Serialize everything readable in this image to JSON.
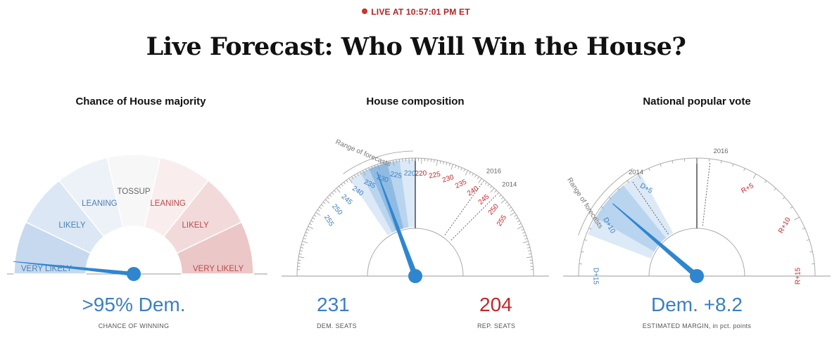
{
  "header": {
    "live_label": "LIVE AT 10:57:01 PM ET",
    "title": "Live Forecast: Who Will Win the House?"
  },
  "colors": {
    "dem": "#3a88cc",
    "rep": "#c0282b",
    "needle": "#2f86cf",
    "live_red": "#c8362b"
  },
  "chart_data": [
    {
      "type": "gauge",
      "title": "Chance of House majority",
      "segments": [
        {
          "label": "VERY LIKELY",
          "party": "dem",
          "color": "#c6d9ef"
        },
        {
          "label": "LIKELY",
          "party": "dem",
          "color": "#dbe7f4"
        },
        {
          "label": "LEANING",
          "party": "dem",
          "color": "#edf2f9"
        },
        {
          "label": "TOSSUP",
          "party": "none",
          "color": "#f7f7f7"
        },
        {
          "label": "LEANING",
          "party": "rep",
          "color": "#f9eded"
        },
        {
          "label": "LIKELY",
          "party": "rep",
          "color": "#f3dada"
        },
        {
          "label": "VERY LIKELY",
          "party": "rep",
          "color": "#ecc7c7"
        }
      ],
      "needle_dem_probability": 0.97,
      "value_text": ">95% Dem.",
      "caption": "CHANCE OF WINNING"
    },
    {
      "type": "gauge",
      "title": "House composition",
      "range_label": "Range of forecasts",
      "dem_ticks": [
        "220",
        "225",
        "230",
        "235",
        "240",
        "245",
        "250",
        "255"
      ],
      "rep_ticks": [
        "220",
        "225",
        "230",
        "235",
        "240",
        "245",
        "250",
        "255"
      ],
      "reference_labels": [
        "2016",
        "2014"
      ],
      "reference_dem_seats": [
        194,
        188
      ],
      "forecast_range_outer": [
        218,
        240
      ],
      "forecast_range_inner": [
        223,
        236
      ],
      "forecast_range_core": [
        227,
        233
      ],
      "needle_dem_seats": 231,
      "dem_value": "231",
      "dem_caption": "DEM. SEATS",
      "rep_value": "204",
      "rep_caption": "REP. SEATS"
    },
    {
      "type": "gauge",
      "title": "National popular vote",
      "range_label": "Range of forecasts",
      "ticks": [
        "D+15",
        "D+10",
        "D+5",
        "R+5",
        "R+10",
        "R+15"
      ],
      "reference_labels": [
        "2016",
        "2014"
      ],
      "reference_margins": [
        -1.1,
        5.7
      ],
      "forecast_range_outer": [
        4.8,
        11.5
      ],
      "forecast_range_inner": [
        6.5,
        10.0
      ],
      "needle_dem_margin": 8.2,
      "value_text": "Dem. +8.2",
      "caption": "ESTIMATED MARGIN, in pct. points"
    }
  ]
}
